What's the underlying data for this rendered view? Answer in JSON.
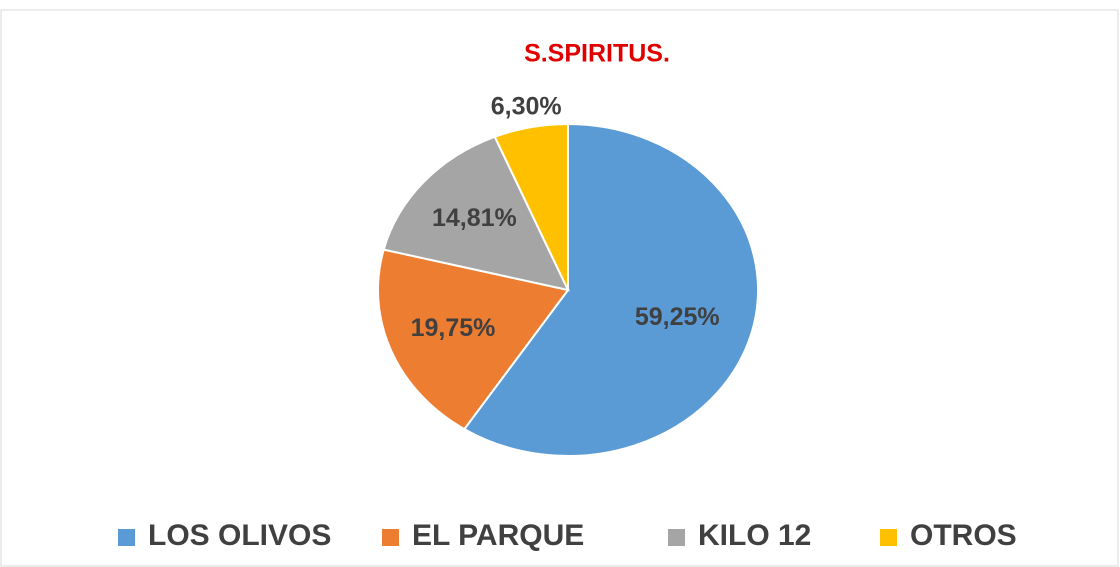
{
  "chart_data": {
    "type": "pie",
    "title": "S.SPIRITUS.",
    "categories": [
      "LOS OLIVOS",
      "EL PARQUE",
      "KILO 12",
      "OTROS"
    ],
    "values": [
      59.25,
      19.75,
      14.81,
      6.3
    ],
    "value_labels": [
      "59,25%",
      "19,75%",
      "14,81%",
      "6,30%"
    ],
    "colors": [
      "#5b9bd5",
      "#ed7d31",
      "#a5a5a5",
      "#ffc000"
    ],
    "legend": "bottom"
  }
}
